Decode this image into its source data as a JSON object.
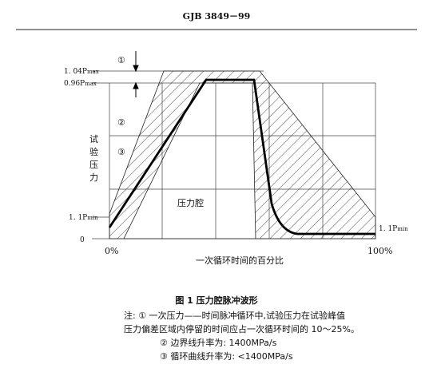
{
  "header": {
    "title": "GJB 3849－99"
  },
  "figure": {
    "y_labels": [
      {
        "main": "1. 04P",
        "sub": "max"
      },
      {
        "main": "0.96P",
        "sub": "max"
      },
      {
        "main": "1. 1P",
        "sub": "min"
      },
      {
        "main": "0"
      }
    ],
    "right_label": {
      "main": "1. 1P",
      "sub": "min"
    },
    "markers": [
      "①",
      "②",
      "③"
    ],
    "y_title": [
      "试",
      "验",
      "压",
      "力"
    ],
    "region_label": "压力腔",
    "x_ticks": [
      "0%",
      "100%"
    ],
    "x_title": "一次循环时间的百分比"
  },
  "caption": "图 1   压力腔脉冲波形",
  "notes": [
    "注: ① 一次压力——时间脉冲循环中,试验压力在试验峰值",
    "压力偏差区域内停留的时间应占一次循环时间的 10～25%。",
    "② 边界线升率为: 1400MPa/s",
    "③ 循环曲线升率为: <1400MPa/s"
  ]
}
